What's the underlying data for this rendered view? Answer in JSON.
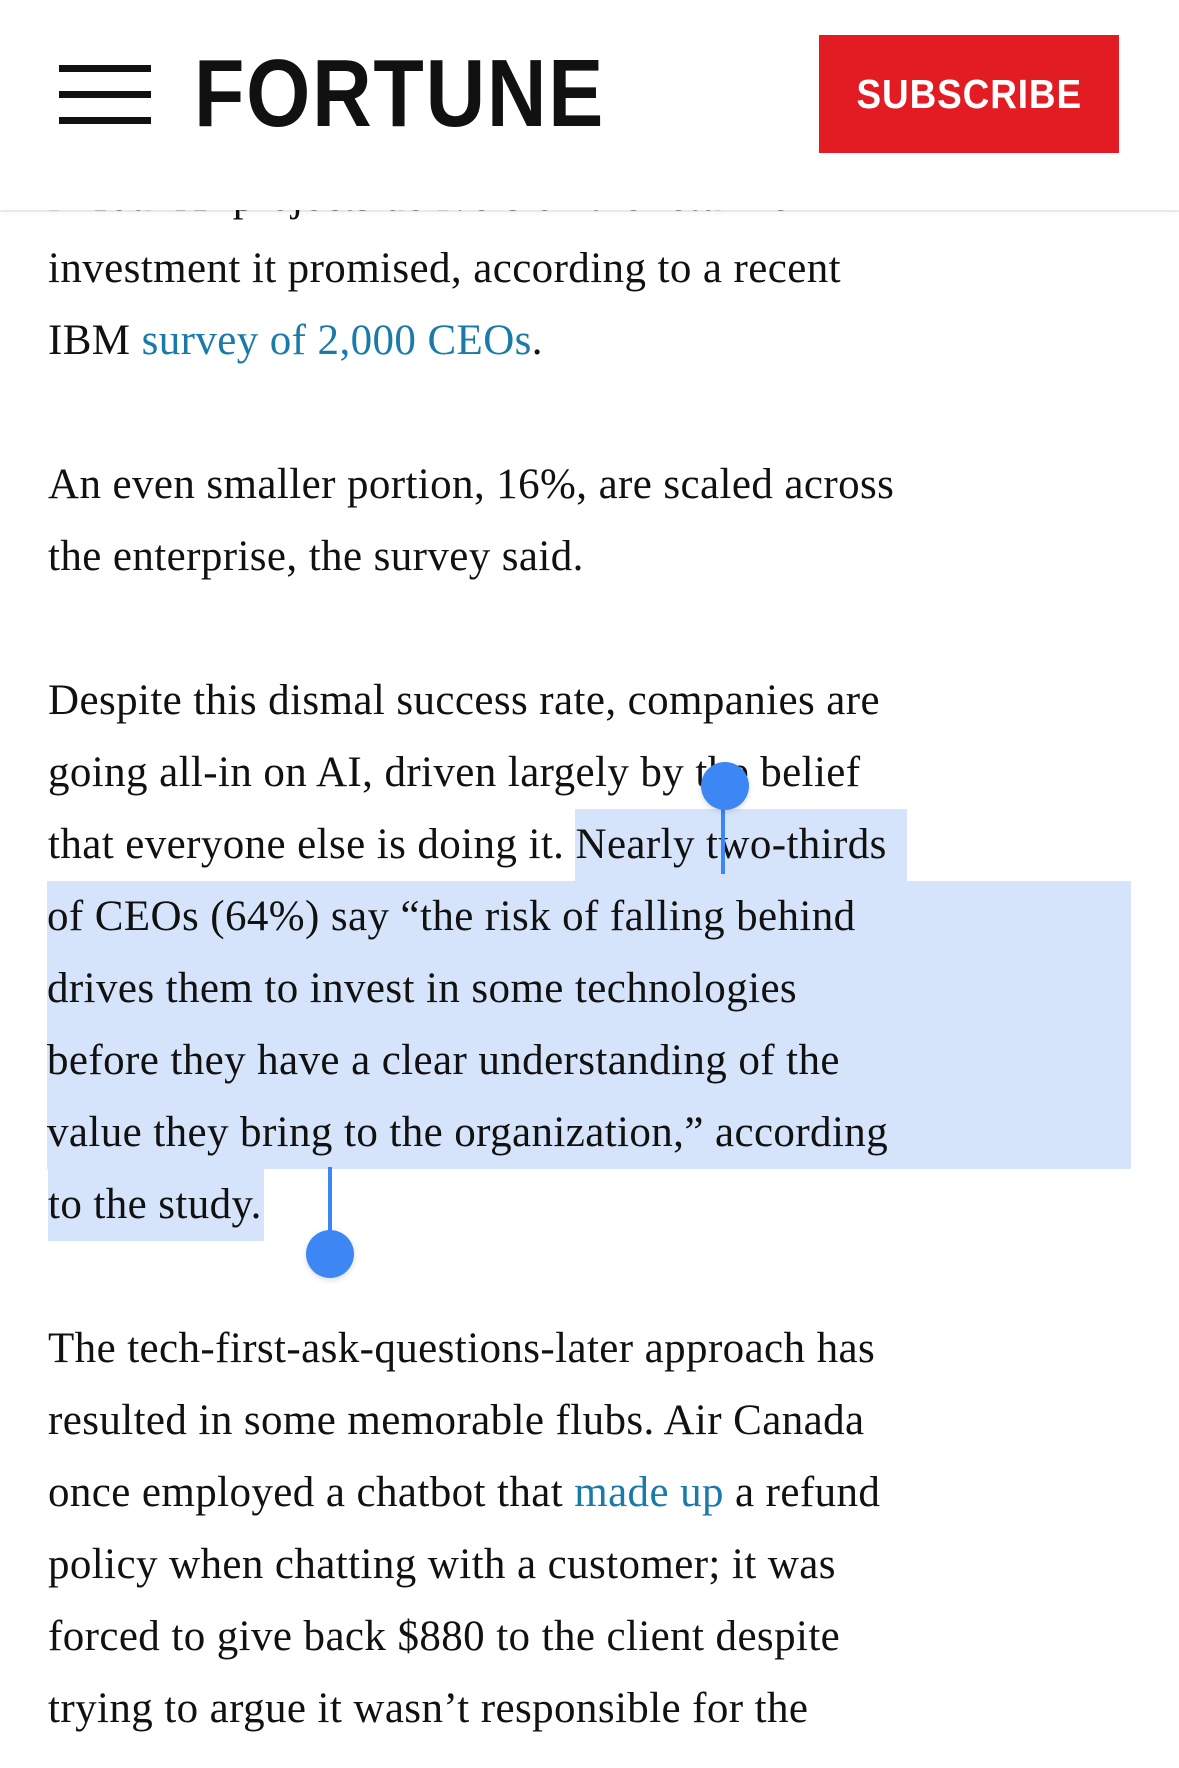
{
  "header": {
    "logo": "FORTUNE",
    "subscribe_label": "SUBSCRIBE"
  },
  "colors": {
    "subscribe_bg": "#e31b23",
    "link": "#1a7ba8",
    "selection": "#d6e4fb",
    "handle": "#3d87f5"
  },
  "article": {
    "p1": {
      "line0": "in four AI projects delivers on the return on",
      "line1": "investment it promised, according to a recent",
      "line2_pre": "IBM ",
      "line2_link": "survey of 2,000 CEOs",
      "line2_post": "."
    },
    "p2": {
      "line0": "An even smaller portion, 16%, are scaled across",
      "line1": "the enterprise, the survey said."
    },
    "p3": {
      "line0": "Despite this dismal success rate, companies are",
      "line1": "going all-in on AI, driven largely by the belief",
      "line2_pre": "that everyone else is doing it. ",
      "line2_sel": "Nearly two-thirds",
      "line3": "of CEOs (64%) say “the risk of falling behind",
      "line4": "drives them to invest in some technologies",
      "line5": "before they have a clear understanding of the",
      "line6": "value they bring to the organization,” according",
      "line7": "to the study."
    },
    "p4": {
      "line0": "The tech-first-ask-questions-later approach has",
      "line1": "resulted in some memorable flubs. Air Canada",
      "line2_pre": "once employed a chatbot that ",
      "line2_link": "made up",
      "line2_post": " a refund",
      "line3": "policy when chatting with a customer; it was",
      "line4": "forced to give back $880 to the client despite",
      "line5": "trying to argue it wasn’t responsible for the"
    }
  }
}
